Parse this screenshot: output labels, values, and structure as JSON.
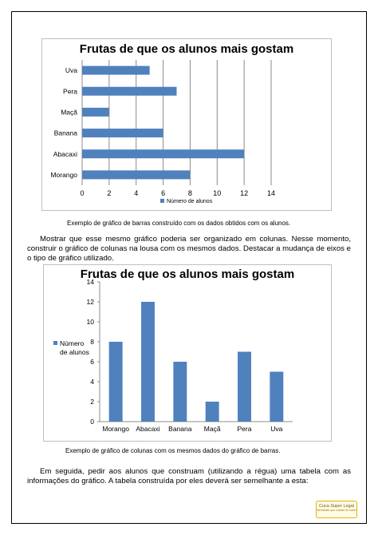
{
  "chart_data": [
    {
      "type": "bar",
      "orientation": "horizontal",
      "title": "Frutas de que os alunos mais gostam",
      "categories": [
        "Morango",
        "Abacaxi",
        "Banana",
        "Maçã",
        "Pera",
        "Uva"
      ],
      "series": [
        {
          "name": "Número de alunos",
          "values": [
            8,
            12,
            6,
            2,
            7,
            5
          ]
        }
      ],
      "xlim": [
        0,
        14
      ],
      "ticks": [
        0,
        2,
        4,
        6,
        8,
        10,
        12,
        14
      ],
      "grid": true,
      "legend": "bottom",
      "color": "#4f81bd"
    },
    {
      "type": "bar",
      "orientation": "vertical",
      "title": "Frutas de que os alunos mais gostam",
      "categories": [
        "Morango",
        "Abacaxi",
        "Banana",
        "Maçã",
        "Pera",
        "Uva"
      ],
      "series": [
        {
          "name": "Número de alunos",
          "values": [
            8,
            12,
            6,
            2,
            7,
            5
          ]
        }
      ],
      "ylim": [
        0,
        14
      ],
      "ticks": [
        0,
        2,
        4,
        6,
        8,
        10,
        12,
        14
      ],
      "grid": false,
      "legend": "left",
      "color": "#4f81bd"
    }
  ],
  "captions": {
    "bar_chart": "Exemplo de gráfico de barras construído com os dados obtidos com os alunos.",
    "column_chart": "Exemplo de gráfico de colunas com os mesmos dados do gráfico de barras."
  },
  "paragraphs": {
    "p1": "Mostrar que esse mesmo gráfico poderia ser organizado em colunas. Nesse momento, construir o gráfico de colunas na lousa com os mesmos dados. Destacar a mudança de eixos e o tipo de gráfico utilizado.",
    "p2": "Em seguida, pedir aos alunos que construam (utilizando a régua) uma tabela com as informações do gráfico. A tabela construída por eles deverá ser semelhante a esta:"
  },
  "logo": {
    "name": "Cuca Super Legal",
    "tagline": "Atividades que cuidam do saber"
  }
}
